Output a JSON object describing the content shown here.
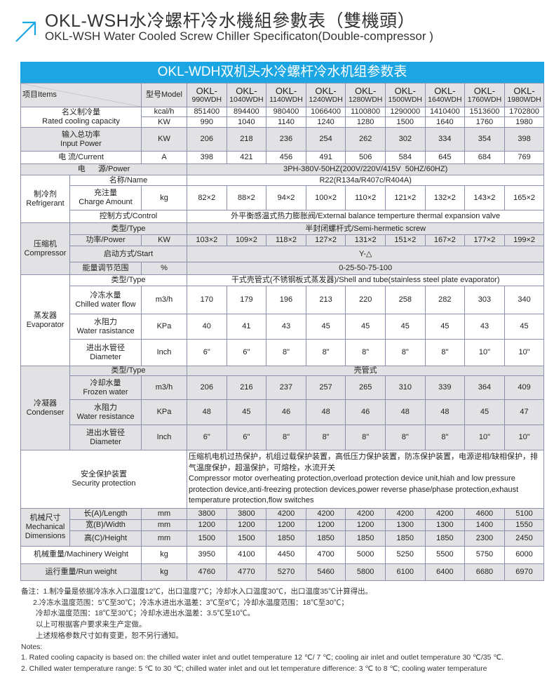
{
  "header": {
    "title_cn": "OKL-WSH水冷螺杆冷水機組參數表（雙機頭）",
    "title_en": "OKL-WSH Water Cooled Screw Chiller Specificaton(Double-compressor )",
    "icon": "arrow-up-right-icon",
    "accent": "#1ba6e3"
  },
  "table": {
    "band_title": "OKL-WDH双机头水冷螺杆冷水机组参数表",
    "items_label": "项目Items",
    "model_label": "型号Model",
    "models": [
      {
        "a": "OKL-",
        "b": "990WDH"
      },
      {
        "a": "OKL-",
        "b": "1040WDH"
      },
      {
        "a": "OKL-",
        "b": "1140WDH"
      },
      {
        "a": "OKL-",
        "b": "1240WDH"
      },
      {
        "a": "OKL-",
        "b": "1280WDH"
      },
      {
        "a": "OKL-",
        "b": "1500WDH"
      },
      {
        "a": "OKL-",
        "b": "1640WDH"
      },
      {
        "a": "OKL-",
        "b": "1760WDH"
      },
      {
        "a": "OKL-",
        "b": "1980WDH"
      }
    ],
    "cooling": {
      "cn": "名义制冷量",
      "en": "Rated cooling capacity",
      "unit_kcal": "kcal/h",
      "unit_kw": "KW",
      "kcal": [
        "851400",
        "894400",
        "980400",
        "1066400",
        "1100800",
        "1290000",
        "1410400",
        "1513600",
        "1702800"
      ],
      "kw": [
        "990",
        "1040",
        "1140",
        "1240",
        "1280",
        "1500",
        "1640",
        "1760",
        "1980"
      ]
    },
    "input": {
      "cn": "输入总功率",
      "en": "Input Power",
      "unit": "KW",
      "values": [
        "206",
        "218",
        "236",
        "254",
        "262",
        "302",
        "334",
        "354",
        "398"
      ]
    },
    "current": {
      "label": "电  流/Current",
      "unit": "A",
      "values": [
        "398",
        "421",
        "456",
        "491",
        "506",
        "584",
        "645",
        "684",
        "769"
      ]
    },
    "power": {
      "label": "电      源/Power",
      "value": "3PH-380V-50HZ(200V/220V/415V  50HZ/60HZ)"
    },
    "refrigerant": {
      "cn": "制冷剂",
      "en": "Refrigerant",
      "name_label": "名称/Name",
      "name_value": "R22(R134a/R407c/R404A)",
      "charge_cn": "充注量",
      "charge_en": "Charge Amount",
      "charge_unit": "kg",
      "charge": [
        "82×2",
        "88×2",
        "94×2",
        "100×2",
        "110×2",
        "121×2",
        "132×2",
        "143×2",
        "165×2"
      ],
      "control_label": "控制方式/Control",
      "control_value": "外平衡感温式热力膨胀阀/External balance temperture thermal expansion valve"
    },
    "compressor": {
      "cn": "压缩机",
      "en": "Compressor",
      "type_label": "类型/Type",
      "type_value": "半封闭螺杆式/Semi-hermetic screw",
      "power_label": "功率/Power",
      "power_unit": "KW",
      "power": [
        "103×2",
        "109×2",
        "118×2",
        "127×2",
        "131×2",
        "151×2",
        "167×2",
        "177×2",
        "199×2"
      ],
      "start_label": "启动方式/Start",
      "start_value": "Y-△",
      "energy_label": "能量调节范围",
      "energy_unit": "%",
      "energy_value": "0-25-50-75-100"
    },
    "evaporator": {
      "cn": "蒸发器",
      "en": "Evaporator",
      "type_label": "类型/Type",
      "type_value": "干式壳管式(不锈钢板式蒸发器)/Shell and tube(stainless steel plate evaporator)",
      "flow_cn": "冷冻水量",
      "flow_en": "Chilled water flow",
      "flow_unit": "m3/h",
      "flow": [
        "170",
        "179",
        "196",
        "213",
        "220",
        "258",
        "282",
        "303",
        "340"
      ],
      "res_cn": "水阻力",
      "res_en": "Water rasistance",
      "res_unit": "KPa",
      "res": [
        "40",
        "41",
        "43",
        "45",
        "45",
        "45",
        "45",
        "43",
        "45"
      ],
      "dia_cn": "进出水管径",
      "dia_en": "Diameter",
      "dia_unit": "Inch",
      "dia": [
        "6\"",
        "6\"",
        "8\"",
        "8\"",
        "8\"",
        "8\"",
        "8\"",
        "10\"",
        "10\""
      ]
    },
    "condenser": {
      "cn": "冷凝器",
      "en": "Condenser",
      "type_label": "类型/Type",
      "type_value": "壳管式",
      "flow_cn": "冷却水量",
      "flow_en": "Frozen water",
      "flow_unit": "m3/h",
      "flow": [
        "206",
        "216",
        "237",
        "257",
        "265",
        "310",
        "339",
        "364",
        "409"
      ],
      "res_cn": "水阻力",
      "res_en": "Water resistance",
      "res_unit": "KPa",
      "res": [
        "48",
        "45",
        "46",
        "48",
        "46",
        "48",
        "48",
        "45",
        "47"
      ],
      "dia_cn": "进出水管径",
      "dia_en": "Diameter",
      "dia_unit": "Inch",
      "dia": [
        "6\"",
        "6\"",
        "8\"",
        "8\"",
        "8\"",
        "8\"",
        "8\"",
        "10\"",
        "10\""
      ]
    },
    "security": {
      "cn": "安全保护装置",
      "en": "Security protection",
      "value_cn": "压缩机电机过热保护，机组过载保护装置，高低压力保护装置，防冻保护装置，电源逆相/缺相保护，排气温度保护，超温保护，可熔栓，水流开关",
      "value_en": "Compressor motor overheating protection,overload protection device unit,hiah and low pressure protection device,anti-freezing protection devices,power reverse phase/phase protection,exhaust temperature protection,flow switches"
    },
    "dimensions": {
      "cn": "机械尺寸",
      "en1": "Mechanical",
      "en2": "Dimensions",
      "length_label": "长(A)/Length",
      "width_label": "宽(B)/Width",
      "height_label": "高(C)/Height",
      "unit": "mm",
      "length": [
        "3800",
        "3800",
        "4200",
        "4200",
        "4200",
        "4200",
        "4200",
        "4600",
        "5100"
      ],
      "width": [
        "1200",
        "1200",
        "1200",
        "1200",
        "1200",
        "1300",
        "1300",
        "1400",
        "1550"
      ],
      "height": [
        "1500",
        "1500",
        "1850",
        "1850",
        "1850",
        "1850",
        "1850",
        "2300",
        "2450"
      ]
    },
    "machinery_weight": {
      "label": "机械重量/Machinery Weight",
      "unit": "kg",
      "values": [
        "3950",
        "4100",
        "4450",
        "4700",
        "5000",
        "5250",
        "5500",
        "5750",
        "6000"
      ]
    },
    "run_weight": {
      "label": "运行重量/Run weight",
      "unit": "kg",
      "values": [
        "4760",
        "4770",
        "5270",
        "5460",
        "5800",
        "6100",
        "6400",
        "6680",
        "6970"
      ]
    }
  },
  "notes": {
    "cn1": "备注：1.制冷量是依据冷冻水入口温度12℃，出口温度7℃；冷却水入口温度30℃，出口温度35℃计算得出。",
    "cn2": "2.冷冻水温度范围：5℃至30℃；冷冻水进出水温差：3℃至8℃；冷却水温度范围：18℃至30℃；",
    "cn3": "冷却水温度范围：18℃至30℃；冷却水进出水温差：3.5℃至10℃。",
    "cn4": "以上可根据客户要求来生产定做。",
    "cn5": "上述规格参数尺寸如有变更，恕不另行通知。",
    "en_title": "Notes:",
    "en1": "1. Rated cooling capacity is based on: the chilled water inlet and outlet temperature 12 ℃/ 7 ℃; cooling air inlet and outlet temperature 30 ℃/35 ℃.",
    "en2": "2. Chilled water temperature  range: 5 ℃ to 30 ℃; chilled water inlet and out let temperature difference: 3 ℃ to 8 ℃; cooling water temperature"
  }
}
